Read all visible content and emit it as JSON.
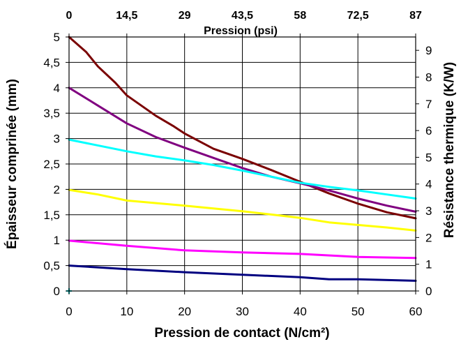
{
  "chart_data": {
    "type": "line",
    "xlabel": "Pression de contact  (N/cm²)",
    "x2label": "Pression (psi)",
    "ylabel": "Épaisseur comprinée (mm)",
    "y2label": "Résistance thermique (K/W)",
    "xlim": [
      0,
      60
    ],
    "ylim": [
      0,
      5
    ],
    "y2lim": [
      0,
      9.5
    ],
    "grid": true,
    "x_ticks": [
      "0",
      "10",
      "20",
      "30",
      "40",
      "50",
      "60"
    ],
    "x2_ticks": [
      "0",
      "14,5",
      "29",
      "43,5",
      "58",
      "72,5",
      "87"
    ],
    "y_ticks": [
      "0",
      "0,5",
      "1",
      "1,5",
      "2",
      "2,5",
      "3",
      "3,5",
      "4",
      "4,5",
      "5"
    ],
    "y2_ticks": [
      "0",
      "1",
      "2",
      "3",
      "4",
      "5",
      "6",
      "7",
      "8",
      "9"
    ],
    "series": [
      {
        "color": "#7a0000",
        "points": [
          [
            0,
            5.0
          ],
          [
            3,
            4.7
          ],
          [
            5,
            4.42
          ],
          [
            8,
            4.1
          ],
          [
            10,
            3.85
          ],
          [
            15,
            3.45
          ],
          [
            18,
            3.25
          ],
          [
            20,
            3.1
          ],
          [
            25,
            2.8
          ],
          [
            30,
            2.6
          ],
          [
            35,
            2.38
          ],
          [
            40,
            2.15
          ],
          [
            45,
            1.92
          ],
          [
            50,
            1.72
          ],
          [
            55,
            1.55
          ],
          [
            60,
            1.43
          ]
        ]
      },
      {
        "color": "#800080",
        "points": [
          [
            0,
            4.0
          ],
          [
            5,
            3.65
          ],
          [
            10,
            3.3
          ],
          [
            15,
            3.03
          ],
          [
            20,
            2.82
          ],
          [
            25,
            2.62
          ],
          [
            30,
            2.42
          ],
          [
            35,
            2.25
          ],
          [
            40,
            2.12
          ],
          [
            45,
            1.98
          ],
          [
            50,
            1.82
          ],
          [
            55,
            1.68
          ],
          [
            60,
            1.56
          ]
        ]
      },
      {
        "color": "#00ffff",
        "points": [
          [
            0,
            2.98
          ],
          [
            10,
            2.75
          ],
          [
            15,
            2.65
          ],
          [
            20,
            2.57
          ],
          [
            25,
            2.48
          ],
          [
            30,
            2.37
          ],
          [
            35,
            2.25
          ],
          [
            40,
            2.13
          ],
          [
            45,
            2.05
          ],
          [
            50,
            1.98
          ],
          [
            55,
            1.9
          ],
          [
            60,
            1.82
          ]
        ]
      },
      {
        "color": "#ffff00",
        "points": [
          [
            0,
            1.99
          ],
          [
            5,
            1.9
          ],
          [
            10,
            1.78
          ],
          [
            20,
            1.68
          ],
          [
            30,
            1.57
          ],
          [
            40,
            1.44
          ],
          [
            45,
            1.35
          ],
          [
            50,
            1.3
          ],
          [
            55,
            1.25
          ],
          [
            60,
            1.19
          ]
        ]
      },
      {
        "color": "#ff00ff",
        "points": [
          [
            0,
            0.99
          ],
          [
            10,
            0.89
          ],
          [
            20,
            0.8
          ],
          [
            30,
            0.76
          ],
          [
            40,
            0.73
          ],
          [
            50,
            0.67
          ],
          [
            60,
            0.65
          ]
        ]
      },
      {
        "color": "#000080",
        "points": [
          [
            0,
            0.5
          ],
          [
            10,
            0.43
          ],
          [
            20,
            0.37
          ],
          [
            30,
            0.32
          ],
          [
            40,
            0.27
          ],
          [
            45,
            0.23
          ],
          [
            50,
            0.23
          ],
          [
            60,
            0.2
          ]
        ]
      }
    ],
    "marker": {
      "x": 0,
      "y": 0,
      "color": "#00bfbf"
    }
  }
}
